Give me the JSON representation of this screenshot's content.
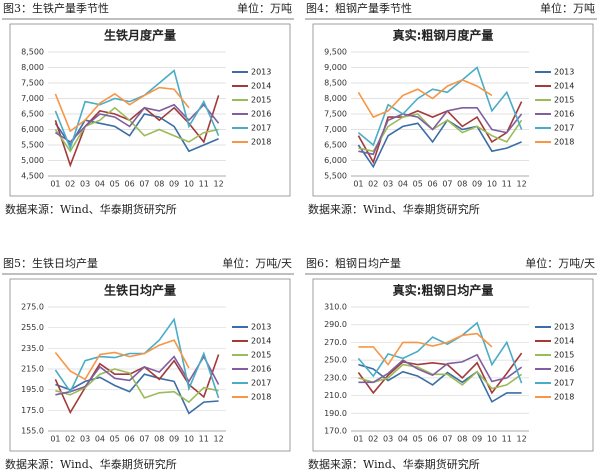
{
  "chart_data": [
    {
      "type": "line",
      "figure_label": "图3：生铁产量季节性",
      "unit": "单位：万吨",
      "title": "生铁月度产量",
      "source": "数据来源：Wind、华泰期货研究所",
      "categories": [
        "01",
        "02",
        "03",
        "04",
        "05",
        "06",
        "07",
        "08",
        "09",
        "10",
        "11",
        "12"
      ],
      "ylim": [
        4500,
        8500
      ],
      "yticks": [
        {
          "value": 4500,
          "label": "4,500"
        },
        {
          "value": 5000,
          "label": "5,000"
        },
        {
          "value": 5500,
          "label": "5,500"
        },
        {
          "value": 6000,
          "label": "6,000"
        },
        {
          "value": 6500,
          "label": "6,500"
        },
        {
          "value": 7000,
          "label": "7,000"
        },
        {
          "value": 7500,
          "label": "7,500"
        },
        {
          "value": 8000,
          "label": "8,000"
        },
        {
          "value": 8500,
          "label": "8,500"
        }
      ],
      "series": [
        {
          "name": "2013",
          "color": "#3a6ea5",
          "values": [
            6200,
            5500,
            6300,
            6200,
            6100,
            5800,
            6500,
            6400,
            6100,
            5300,
            5500,
            5700
          ]
        },
        {
          "name": "2014",
          "color": "#a23a3a",
          "values": [
            6300,
            4850,
            6100,
            6600,
            6500,
            6300,
            6700,
            6300,
            6700,
            6200,
            5600,
            7100
          ]
        },
        {
          "name": "2015",
          "color": "#9bbb59",
          "values": [
            6000,
            5300,
            6100,
            6300,
            6700,
            6300,
            5800,
            6000,
            5800,
            5600,
            5900,
            6000
          ]
        },
        {
          "name": "2016",
          "color": "#7f5fa0",
          "values": [
            5900,
            5600,
            6100,
            6500,
            6400,
            6100,
            6700,
            6600,
            6800,
            6300,
            6800,
            6200
          ]
        },
        {
          "name": "2017",
          "color": "#4bacc6",
          "values": [
            6600,
            5400,
            6900,
            6800,
            7000,
            6900,
            7100,
            7500,
            7900,
            6100,
            6900,
            5800
          ]
        },
        {
          "name": "2018",
          "color": "#f79646",
          "values": [
            7150,
            5950,
            6300,
            6850,
            7150,
            6800,
            7100,
            7350,
            7300,
            6700,
            null,
            null
          ]
        }
      ]
    },
    {
      "type": "line",
      "figure_label": "图4：粗钢产量季节性",
      "unit": "单位：万吨",
      "title": "真实:粗钢月度产量",
      "source": "数据来源：Wind、华泰期货研究所",
      "categories": [
        "01",
        "02",
        "03",
        "04",
        "05",
        "06",
        "07",
        "08",
        "09",
        "10",
        "11",
        "12"
      ],
      "ylim": [
        5500,
        9500
      ],
      "yticks": [
        {
          "value": 5500,
          "label": "5,500"
        },
        {
          "value": 6000,
          "label": "6,000"
        },
        {
          "value": 6500,
          "label": "6,500"
        },
        {
          "value": 7000,
          "label": "7,000"
        },
        {
          "value": 7500,
          "label": "7,500"
        },
        {
          "value": 8000,
          "label": "8,000"
        },
        {
          "value": 8500,
          "label": "8,500"
        },
        {
          "value": 9000,
          "label": "9,000"
        },
        {
          "value": 9500,
          "label": "9,500"
        }
      ],
      "series": [
        {
          "name": "2013",
          "color": "#3a6ea5",
          "values": [
            6500,
            5800,
            6800,
            7100,
            7200,
            6600,
            7300,
            7000,
            7100,
            6300,
            6400,
            6600
          ]
        },
        {
          "name": "2014",
          "color": "#a23a3a",
          "values": [
            6800,
            5950,
            7400,
            7400,
            7600,
            7400,
            7600,
            7100,
            7400,
            6600,
            6900,
            7900
          ]
        },
        {
          "name": "2015",
          "color": "#9bbb59",
          "values": [
            6400,
            6300,
            7100,
            7400,
            7500,
            7000,
            7300,
            6900,
            7100,
            6800,
            6600,
            7300
          ]
        },
        {
          "name": "2016",
          "color": "#7f5fa0",
          "values": [
            6300,
            6200,
            7300,
            7500,
            7400,
            7000,
            7600,
            7700,
            7700,
            7000,
            6900,
            7500
          ]
        },
        {
          "name": "2017",
          "color": "#4bacc6",
          "values": [
            6900,
            6500,
            7800,
            7500,
            8000,
            8300,
            8200,
            8600,
            9000,
            7600,
            8200,
            7000
          ]
        },
        {
          "name": "2018",
          "color": "#f79646",
          "values": [
            8200,
            7400,
            7600,
            8100,
            8300,
            8000,
            8400,
            8600,
            8400,
            8100,
            null,
            null
          ]
        }
      ]
    },
    {
      "type": "line",
      "figure_label": "图5：生铁日均产量",
      "unit": "单位：万吨/天",
      "title": "生铁日均产量",
      "source": "数据来源：Wind、华泰期货研究所",
      "categories": [
        "01",
        "02",
        "03",
        "04",
        "05",
        "06",
        "07",
        "08",
        "09",
        "10",
        "11",
        "12"
      ],
      "ylim": [
        155,
        275
      ],
      "yticks": [
        {
          "value": 155,
          "label": "155.0"
        },
        {
          "value": 175,
          "label": "175.0"
        },
        {
          "value": 195,
          "label": "195.0"
        },
        {
          "value": 215,
          "label": "215.0"
        },
        {
          "value": 235,
          "label": "235.0"
        },
        {
          "value": 255,
          "label": "255.0"
        },
        {
          "value": 275,
          "label": "275.0"
        }
      ],
      "series": [
        {
          "name": "2013",
          "color": "#3a6ea5",
          "values": [
            200,
            195,
            203,
            207,
            199,
            193,
            210,
            206,
            203,
            172,
            183,
            184
          ]
        },
        {
          "name": "2014",
          "color": "#a23a3a",
          "values": [
            205,
            173,
            197,
            220,
            210,
            210,
            217,
            205,
            223,
            200,
            188,
            229
          ]
        },
        {
          "name": "2015",
          "color": "#9bbb59",
          "values": [
            194,
            190,
            197,
            210,
            215,
            211,
            187,
            192,
            193,
            183,
            197,
            194
          ]
        },
        {
          "name": "2016",
          "color": "#7f5fa0",
          "values": [
            190,
            193,
            198,
            217,
            206,
            204,
            217,
            212,
            227,
            203,
            227,
            200
          ]
        },
        {
          "name": "2017",
          "color": "#4bacc6",
          "values": [
            214,
            193,
            223,
            227,
            226,
            230,
            230,
            243,
            263,
            196,
            230,
            187
          ]
        },
        {
          "name": "2018",
          "color": "#f79646",
          "values": [
            231,
            213,
            205,
            229,
            231,
            227,
            230,
            238,
            243,
            216,
            null,
            null
          ]
        }
      ]
    },
    {
      "type": "line",
      "figure_label": "图6：粗钢日均产量",
      "unit": "单位：万吨/天",
      "title": "真实:粗钢日均产量",
      "source": "数据来源：Wind、华泰期货研究所",
      "categories": [
        "01",
        "02",
        "03",
        "04",
        "05",
        "06",
        "07",
        "08",
        "09",
        "10",
        "11",
        "12"
      ],
      "ylim": [
        170,
        310
      ],
      "yticks": [
        {
          "value": 170,
          "label": "170.0"
        },
        {
          "value": 190,
          "label": "190.0"
        },
        {
          "value": 210,
          "label": "210.0"
        },
        {
          "value": 230,
          "label": "230.0"
        },
        {
          "value": 250,
          "label": "250.0"
        },
        {
          "value": 270,
          "label": "270.0"
        },
        {
          "value": 290,
          "label": "290.0"
        },
        {
          "value": 310,
          "label": "310.0"
        }
      ],
      "series": [
        {
          "name": "2013",
          "color": "#3a6ea5",
          "values": [
            245,
            240,
            227,
            237,
            232,
            222,
            236,
            225,
            237,
            203,
            213,
            213
          ]
        },
        {
          "name": "2014",
          "color": "#a23a3a",
          "values": [
            236,
            213,
            233,
            248,
            245,
            247,
            245,
            230,
            247,
            213,
            235,
            258
          ]
        },
        {
          "name": "2015",
          "color": "#9bbb59",
          "values": [
            230,
            225,
            230,
            245,
            242,
            234,
            234,
            222,
            237,
            218,
            222,
            234
          ]
        },
        {
          "name": "2016",
          "color": "#7f5fa0",
          "values": [
            225,
            225,
            235,
            250,
            240,
            233,
            246,
            248,
            256,
            226,
            230,
            242
          ]
        },
        {
          "name": "2017",
          "color": "#4bacc6",
          "values": [
            252,
            232,
            257,
            252,
            260,
            276,
            268,
            278,
            292,
            245,
            270,
            224
          ]
        },
        {
          "name": "2018",
          "color": "#f79646",
          "values": [
            265,
            265,
            245,
            270,
            270,
            266,
            270,
            278,
            280,
            265,
            null,
            null
          ]
        }
      ]
    }
  ]
}
